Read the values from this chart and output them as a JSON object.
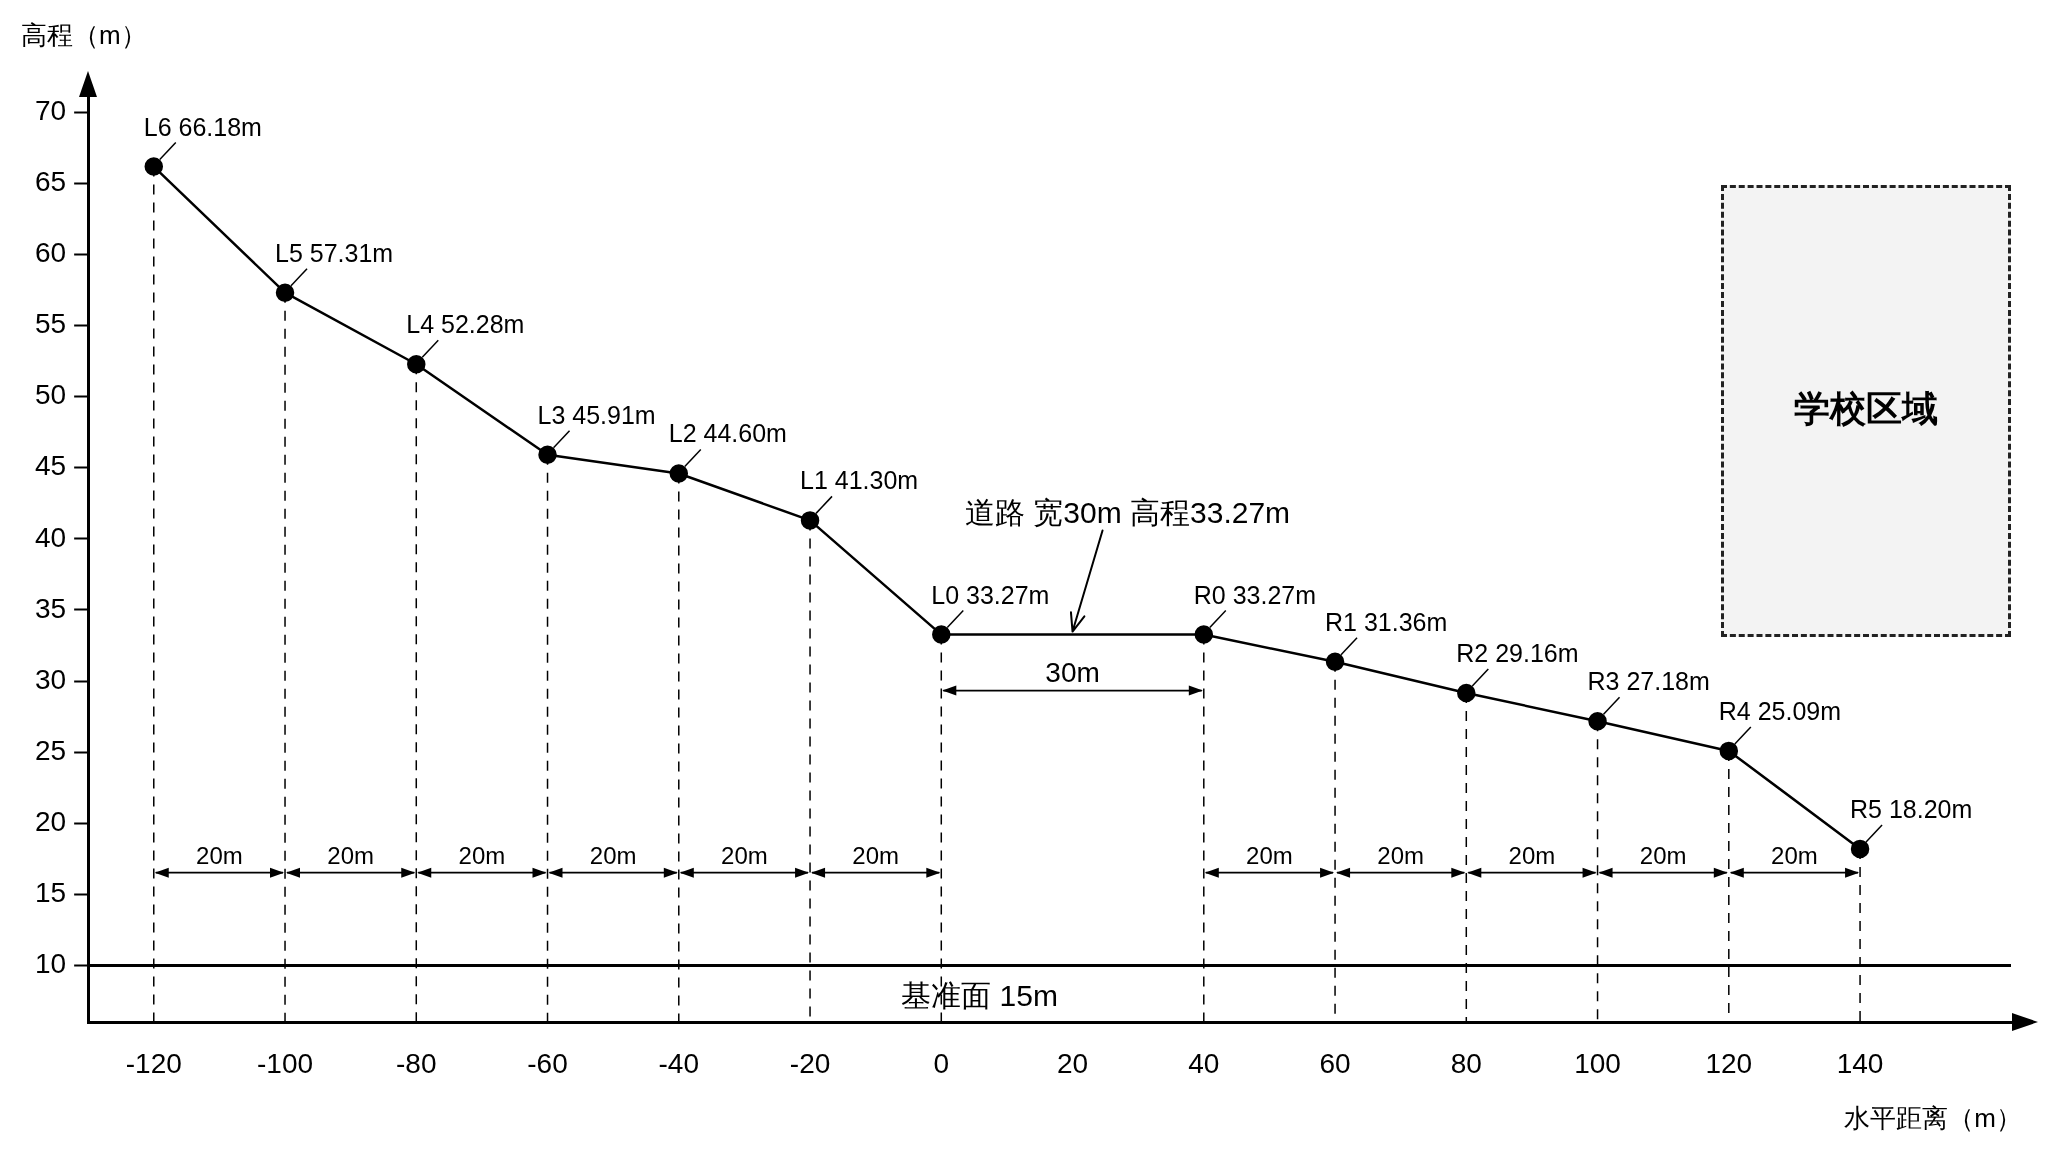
{
  "chart_data": {
    "type": "line",
    "xlabel": "水平距离（m）",
    "ylabel": "高程（m）",
    "x": [
      -120,
      -100,
      -80,
      -60,
      -40,
      -20,
      0,
      40,
      60,
      80,
      100,
      120,
      140
    ],
    "series": [
      {
        "color": "#000000",
        "values": [
          66.18,
          57.31,
          52.28,
          45.91,
          44.6,
          41.3,
          33.27,
          33.27,
          31.36,
          29.16,
          27.18,
          25.09,
          18.2
        ],
        "value_labels": [
          "L6 66.18m",
          "L5 57.31m",
          "L4 52.28m",
          "L3 45.91m",
          "L2 44.60m",
          "L1 41.30m",
          "L0 33.27m",
          "R0 33.27m",
          "R1 31.36m",
          "R2 29.16m",
          "R3 27.18m",
          "R4 25.09m",
          "R5 18.20m"
        ]
      }
    ],
    "xlim": [
      -130,
      163
    ],
    "xticks": [
      -120,
      -100,
      -80,
      -60,
      -40,
      -20,
      0,
      20,
      40,
      60,
      80,
      100,
      120,
      140
    ],
    "ylim": [
      6,
      71
    ],
    "yticks": [
      10,
      15,
      20,
      25,
      30,
      35,
      40,
      45,
      50,
      55,
      60,
      65,
      70
    ],
    "grid": "x",
    "marker": "circle",
    "line_style": "solid",
    "ref_lines": [
      {
        "axis": "y",
        "value": 10,
        "label": "基准面 15m",
        "color": "#000000"
      }
    ],
    "annotations": [
      "20m",
      "20m",
      "20m",
      "20m",
      "20m",
      "20m",
      "30m",
      "20m",
      "20m",
      "20m",
      "20m",
      "20m",
      {
        "text": "道路 宽30m 高程33.27m",
        "x": 20,
        "y": 33.27
      },
      "学校区域"
    ]
  }
}
